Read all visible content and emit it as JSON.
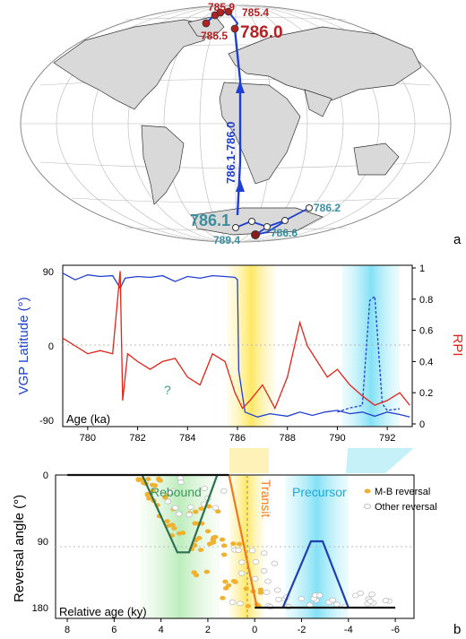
{
  "panel_labels": {
    "a": "a",
    "b": "b"
  },
  "colors": {
    "vgp": "#1f3fd0",
    "rpi": "#e2231a",
    "site_red": "#b22222",
    "site_teal": "#3a8ea0",
    "rebound_green": "#3a9a5a",
    "transit_orange": "#f07a1a",
    "precursor_blue": "#1aa7d8",
    "mb_dots": "#f0b030",
    "other_dots": "#d0d0d0",
    "black_line": "#111111",
    "land": "#d9d9d9"
  },
  "chart_data": [
    {
      "type": "map",
      "projection": "equal-area",
      "vgp_path_labels": [
        {
          "label": "785.9",
          "color": "red"
        },
        {
          "label": "785.4",
          "color": "red"
        },
        {
          "label": "785.5",
          "color": "red"
        },
        {
          "label": "786.0",
          "color": "red"
        },
        {
          "label": "786.1-786.0",
          "color": "blue"
        },
        {
          "label": "786.1",
          "color": "teal"
        },
        {
          "label": "786.2",
          "color": "teal"
        },
        {
          "label": "789.4",
          "color": "teal"
        },
        {
          "label": "786.6",
          "color": "teal"
        }
      ]
    },
    {
      "type": "line",
      "xlabel": "Age (ka)",
      "ylabel_left": "VGP Latitude (°)",
      "ylabel_right": "RPI",
      "xlim": [
        779,
        793
      ],
      "x_ticks": [
        "780",
        "782",
        "784",
        "786",
        "788",
        "790",
        "792"
      ],
      "y_left_ticks": [
        "90",
        "0",
        "-90"
      ],
      "y_right_ticks": [
        "1",
        "0.8",
        "0.6",
        "0.4",
        "0.2",
        "0"
      ],
      "annotation": "?",
      "shaded_bands": [
        {
          "from": 785.6,
          "to": 787.5,
          "color": "yellow"
        },
        {
          "from": 790.2,
          "to": 792.5,
          "color": "cyan"
        }
      ],
      "series": [
        {
          "axis": "left",
          "x": [
            779.0,
            779.5,
            780.0,
            780.5,
            781.0,
            781.3,
            781.5,
            782.0,
            782.5,
            783.0,
            783.5,
            784.0,
            784.5,
            785.0,
            785.5,
            785.9,
            786.0,
            786.05,
            786.3,
            786.8,
            787.3,
            788.0,
            788.5,
            789.0,
            789.5,
            790.0,
            790.5,
            791.0,
            791.5,
            792.0,
            792.5,
            792.9
          ],
          "values": [
            88,
            80,
            86,
            84,
            85,
            70,
            82,
            84,
            83,
            85,
            78,
            84,
            82,
            85,
            84,
            83,
            80,
            -30,
            -80,
            -86,
            -82,
            -85,
            -80,
            -84,
            -80,
            -78,
            -82,
            -80,
            -85,
            -80,
            -83,
            -86
          ]
        },
        {
          "axis": "left",
          "style": "dashed",
          "x": [
            790.0,
            790.5,
            791.0,
            791.3,
            791.5,
            791.8,
            792.0,
            792.5
          ],
          "values": [
            -80,
            -75,
            -72,
            55,
            60,
            -70,
            -78,
            -76
          ]
        },
        {
          "axis": "right",
          "x": [
            779.0,
            779.5,
            780.0,
            780.5,
            781.0,
            781.3,
            781.4,
            781.6,
            782.0,
            782.5,
            783.0,
            783.5,
            784.0,
            784.5,
            785.0,
            785.5,
            785.9,
            786.2,
            786.5,
            787.0,
            787.5,
            788.0,
            788.5,
            788.8,
            789.2,
            789.6,
            790.0,
            790.5,
            791.0,
            791.5,
            792.0,
            792.5,
            792.9
          ],
          "values": [
            0.55,
            0.5,
            0.45,
            0.47,
            0.45,
            0.98,
            0.15,
            0.45,
            0.4,
            0.35,
            0.4,
            0.42,
            0.3,
            0.25,
            0.45,
            0.4,
            0.2,
            0.1,
            0.15,
            0.25,
            0.1,
            0.3,
            0.65,
            0.5,
            0.4,
            0.3,
            0.35,
            0.25,
            0.18,
            0.12,
            0.15,
            0.2,
            0.12
          ]
        }
      ]
    },
    {
      "type": "scatter",
      "xlabel": "Relative age (ky)",
      "ylabel": "Reversal angle (°)",
      "xlim": [
        8.5,
        -6.8
      ],
      "ylim": [
        0,
        180
      ],
      "x_ticks": [
        "8",
        "6",
        "4",
        "2",
        "0",
        "-2",
        "-4",
        "-6"
      ],
      "y_ticks": [
        "0",
        "90",
        "180"
      ],
      "phase_labels": [
        "Rebound",
        "Transit",
        "Precursor"
      ],
      "legend": [
        "M-B reversal",
        "Other reversal"
      ],
      "shaded_bands": [
        {
          "from": 4.9,
          "to": 1.5,
          "color": "green"
        },
        {
          "from": 1.1,
          "to": -0.4,
          "color": "yellow"
        },
        {
          "from": -1.3,
          "to": -4.0,
          "color": "cyan"
        }
      ],
      "model_lines": [
        {
          "name": "Rebound",
          "x": [
            4.8,
            3.3,
            2.8,
            1.6
          ],
          "y": [
            0,
            105,
            105,
            0
          ]
        },
        {
          "name": "Transit",
          "x": [
            1.1,
            -0.1
          ],
          "y": [
            0,
            180
          ]
        },
        {
          "name": "Precursor",
          "x": [
            -1.2,
            -2.4,
            -2.9,
            -4.0
          ],
          "y": [
            180,
            90,
            90,
            180
          ]
        },
        {
          "name": "Baseline",
          "x": [
            8.0,
            4.8,
            1.6,
            1.1
          ],
          "y": [
            0,
            0,
            0,
            0
          ]
        },
        {
          "name": "Baseline-end",
          "x": [
            0,
            -1.2,
            -4.0,
            -6.0
          ],
          "y": [
            180,
            180,
            180,
            180
          ]
        }
      ]
    }
  ]
}
